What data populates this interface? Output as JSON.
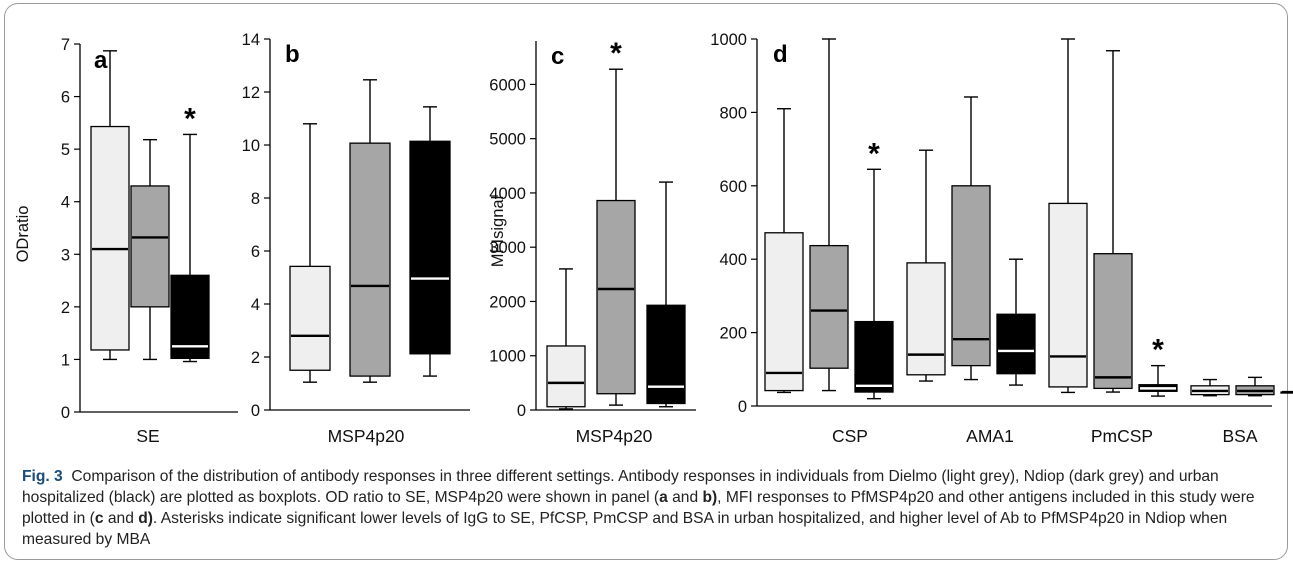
{
  "colors": {
    "dielmo": "#efefef",
    "ndiop": "#a6a6a6",
    "urban": "#000000",
    "caption_label": "#1a4d7a"
  },
  "chart_data": [
    {
      "type": "boxplot",
      "panel": "a",
      "ylabel": "ODratio",
      "ylim": [
        0,
        7
      ],
      "yticks": [
        0,
        1,
        2,
        3,
        4,
        5,
        6,
        7
      ],
      "categories": [
        "SE"
      ],
      "series": [
        {
          "name": "Dielmo",
          "boxes": [
            {
              "min": 1.0,
              "q1": 1.18,
              "median": 3.1,
              "q3": 5.43,
              "max": 6.87
            }
          ]
        },
        {
          "name": "Ndiop",
          "boxes": [
            {
              "min": 1.0,
              "q1": 2.0,
              "median": 3.32,
              "q3": 4.3,
              "max": 5.18
            }
          ]
        },
        {
          "name": "urban hospitalized",
          "boxes": [
            {
              "min": 0.96,
              "q1": 1.02,
              "median": 1.25,
              "q3": 2.6,
              "max": 5.28,
              "star": "*"
            }
          ]
        }
      ]
    },
    {
      "type": "boxplot",
      "panel": "b",
      "ylabel": "",
      "ylim": [
        0,
        14
      ],
      "yticks": [
        0,
        2,
        4,
        6,
        8,
        10,
        12,
        14
      ],
      "categories": [
        "MSP4p20"
      ],
      "series": [
        {
          "name": "Dielmo",
          "boxes": [
            {
              "min": 1.05,
              "q1": 1.5,
              "median": 2.8,
              "q3": 5.42,
              "max": 10.8
            }
          ]
        },
        {
          "name": "Ndiop",
          "boxes": [
            {
              "min": 1.05,
              "q1": 1.28,
              "median": 4.68,
              "q3": 10.07,
              "max": 12.46
            }
          ]
        },
        {
          "name": "urban hospitalized",
          "boxes": [
            {
              "min": 1.28,
              "q1": 2.12,
              "median": 4.96,
              "q3": 10.14,
              "max": 11.44
            }
          ]
        }
      ]
    },
    {
      "type": "boxplot",
      "panel": "c",
      "ylabel": "MFIsignal",
      "ylim": [
        0,
        6800
      ],
      "yticks": [
        0,
        1000,
        2000,
        3000,
        4000,
        5000,
        6000
      ],
      "categories": [
        "MSP4p20"
      ],
      "series": [
        {
          "name": "Dielmo",
          "boxes": [
            {
              "min": 20,
              "q1": 60,
              "median": 500,
              "q3": 1180,
              "max": 2600
            }
          ]
        },
        {
          "name": "Ndiop",
          "boxes": [
            {
              "min": 90,
              "q1": 300,
              "median": 2230,
              "q3": 3860,
              "max": 6280,
              "star": "*"
            }
          ]
        },
        {
          "name": "urban hospitalized",
          "boxes": [
            {
              "min": 60,
              "q1": 120,
              "median": 430,
              "q3": 1930,
              "max": 4200
            }
          ]
        }
      ]
    },
    {
      "type": "boxplot",
      "panel": "d",
      "ylabel": "",
      "ylim": [
        0,
        1000
      ],
      "yticks": [
        0,
        200,
        400,
        600,
        800,
        1000
      ],
      "categories": [
        "CSP",
        "AMA1",
        "PmCSP",
        "BSA"
      ],
      "series": [
        {
          "name": "Dielmo",
          "boxes": [
            {
              "min": 37,
              "q1": 42,
              "median": 90,
              "q3": 472,
              "max": 810
            },
            {
              "min": 68,
              "q1": 85,
              "median": 140,
              "q3": 390,
              "max": 697
            },
            {
              "min": 37,
              "q1": 52,
              "median": 135,
              "q3": 552,
              "max": 1000
            },
            {
              "min": 28,
              "q1": 31,
              "median": 41,
              "q3": 55,
              "max": 72
            }
          ]
        },
        {
          "name": "Ndiop",
          "boxes": [
            {
              "min": 42,
              "q1": 103,
              "median": 260,
              "q3": 437,
              "max": 1000
            },
            {
              "min": 72,
              "q1": 110,
              "median": 182,
              "q3": 600,
              "max": 842
            },
            {
              "min": 38,
              "q1": 48,
              "median": 78,
              "q3": 415,
              "max": 968
            },
            {
              "min": 28,
              "q1": 31,
              "median": 41,
              "q3": 55,
              "max": 78
            }
          ]
        },
        {
          "name": "urban hospitalized",
          "boxes": [
            {
              "min": 20,
              "q1": 38,
              "median": 55,
              "q3": 230,
              "max": 645,
              "star": "*"
            },
            {
              "min": 57,
              "q1": 88,
              "median": 150,
              "q3": 250,
              "max": 400
            },
            {
              "min": 27,
              "q1": 40,
              "median": 48,
              "q3": 58,
              "max": 110,
              "star": "*"
            },
            {
              "min": 22,
              "q1": 38,
              "median": 38,
              "q3": 38,
              "max": 60,
              "star": "*"
            }
          ]
        }
      ]
    }
  ],
  "caption": {
    "label": "Fig. 3",
    "text_1": "Comparison of the distribution of antibody responses in three different settings. Antibody responses in individuals from Dielmo (light grey), Ndiop (dark grey) and urban hospitalized (black) are plotted as boxplots. OD ratio to SE, MSP4p20 were shown in panel (",
    "b1": "a",
    "t2": " and ",
    "b2": "b)",
    "text_3": ", MFI responses to PfMSP4p20 and other antigens included in this study were plotted in (",
    "b3": "c",
    "t4": " and ",
    "b4": "d)",
    "text_5": ". Asterisks indicate significant lower levels of IgG to SE, PfCSP, PmCSP and BSA in urban hospitalized, and higher level of Ab to PfMSP4p20 in Ndiop when measured by MBA"
  }
}
